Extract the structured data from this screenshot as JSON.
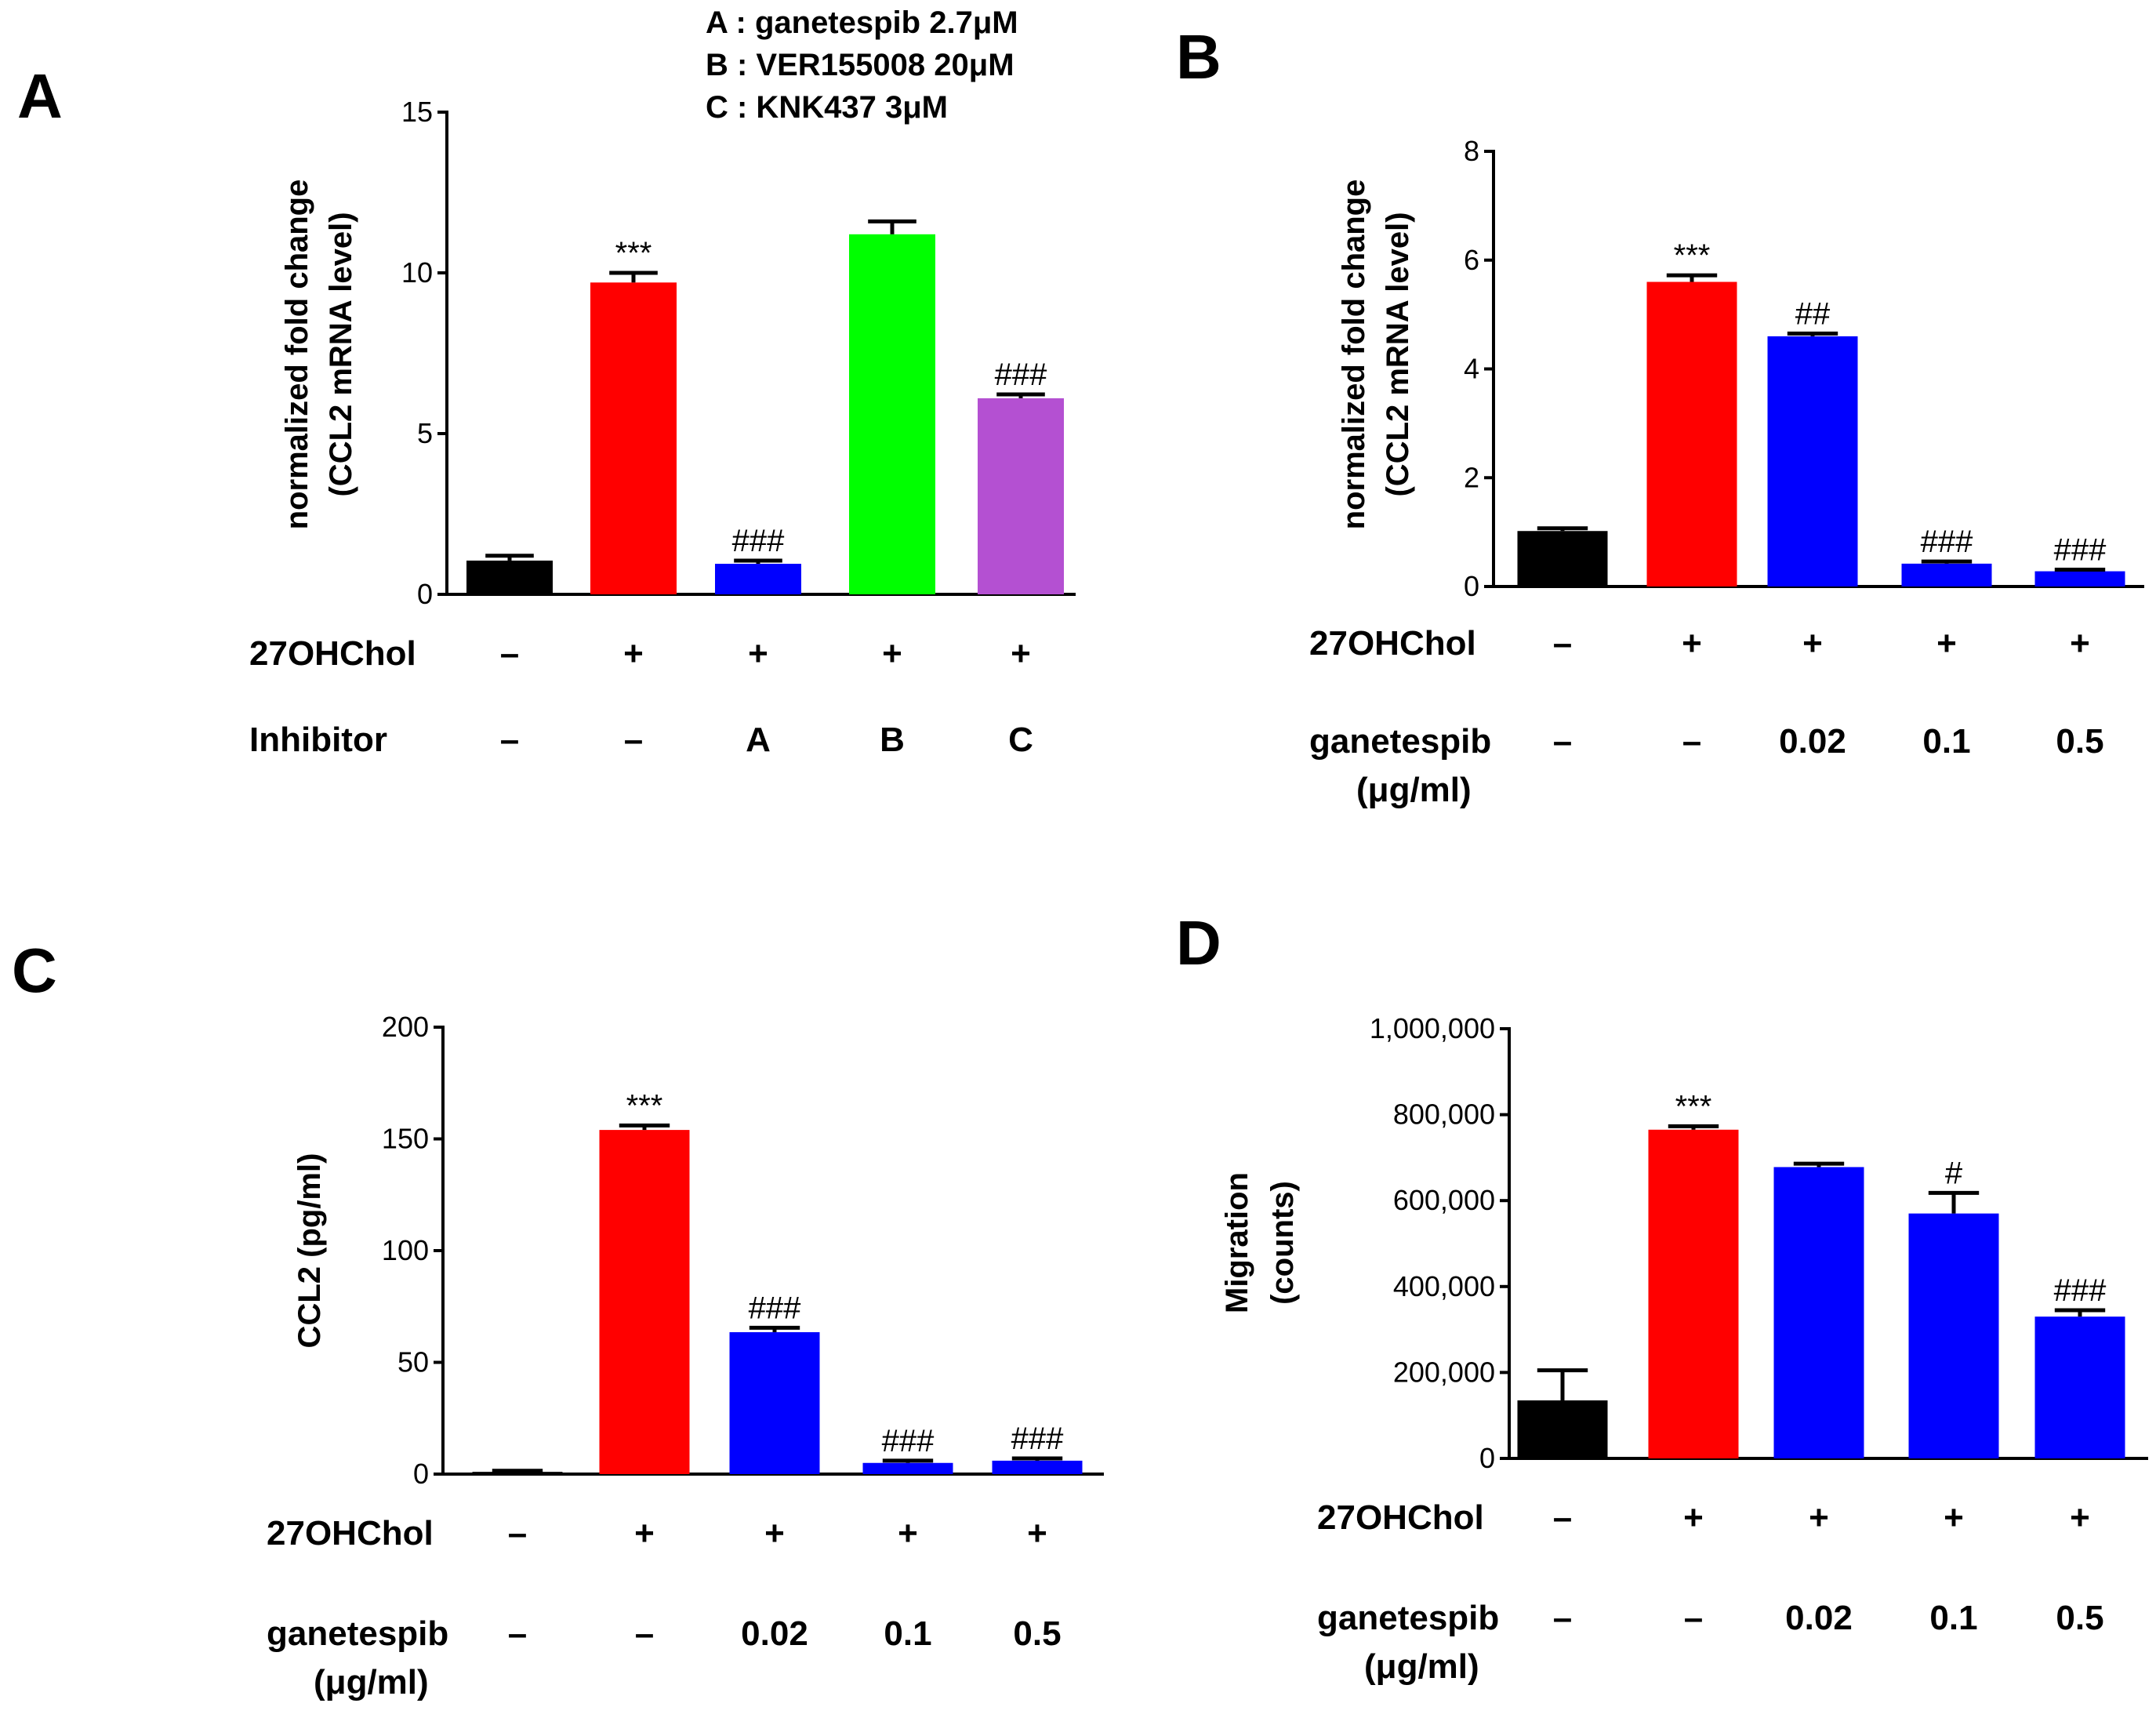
{
  "colors": {
    "black": "#000000",
    "red": "#ff0000",
    "blue": "#0000ff",
    "green": "#00ff00",
    "purple": "#b450d2"
  },
  "legend": [
    "A : ganetespib  2.7μM",
    "B : VER155008  20μM",
    "C : KNK437  3μM"
  ],
  "chart_data": [
    {
      "panel": "A",
      "type": "bar",
      "ylabel": [
        "normalized fold change",
        "(CCL2 mRNA level)"
      ],
      "ylim": [
        0,
        15
      ],
      "yticks": [
        "0",
        "5",
        "10",
        "15"
      ],
      "categories": [
        "1",
        "2",
        "3",
        "4",
        "5"
      ],
      "values": [
        1.05,
        9.7,
        0.95,
        11.2,
        6.1
      ],
      "errors": [
        0.15,
        0.3,
        0.1,
        0.4,
        0.12
      ],
      "bar_colors": [
        "black",
        "red",
        "blue",
        "green",
        "purple"
      ],
      "annotations": [
        "",
        "***",
        "###",
        "",
        "###"
      ],
      "rows": [
        {
          "label": "27OHChol",
          "cells": [
            "–",
            "+",
            "+",
            "+",
            "+"
          ]
        },
        {
          "label": "Inhibitor",
          "cells": [
            "–",
            "–",
            "A",
            "B",
            "C"
          ]
        }
      ]
    },
    {
      "panel": "B",
      "type": "bar",
      "ylabel": [
        "normalized fold change",
        "(CCL2 mRNA level)"
      ],
      "ylim": [
        0,
        8
      ],
      "yticks": [
        "0",
        "2",
        "4",
        "6",
        "8"
      ],
      "categories": [
        "1",
        "2",
        "3",
        "4",
        "5"
      ],
      "values": [
        1.02,
        5.6,
        4.6,
        0.42,
        0.28
      ],
      "errors": [
        0.05,
        0.12,
        0.05,
        0.04,
        0.03
      ],
      "bar_colors": [
        "black",
        "red",
        "blue",
        "blue",
        "blue"
      ],
      "annotations": [
        "",
        "***",
        "##",
        "###",
        "###"
      ],
      "rows": [
        {
          "label": "27OHChol",
          "cells": [
            "–",
            "+",
            "+",
            "+",
            "+"
          ]
        },
        {
          "label": "ganetespib",
          "label2": "(μg/ml)",
          "cells": [
            "–",
            "–",
            "0.02",
            "0.1",
            "0.5"
          ]
        }
      ]
    },
    {
      "panel": "C",
      "type": "bar",
      "ylabel": [
        "CCL2 (pg/ml)"
      ],
      "ylim": [
        0,
        200
      ],
      "yticks": [
        "0",
        "50",
        "100",
        "150",
        "200"
      ],
      "categories": [
        "1",
        "2",
        "3",
        "4",
        "5"
      ],
      "values": [
        1,
        154,
        63.5,
        5,
        6
      ],
      "errors": [
        0.5,
        2,
        2,
        1,
        1
      ],
      "bar_colors": [
        "black",
        "red",
        "blue",
        "blue",
        "blue"
      ],
      "annotations": [
        "",
        "***",
        "###",
        "###",
        "###"
      ],
      "rows": [
        {
          "label": "27OHChol",
          "cells": [
            "–",
            "+",
            "+",
            "+",
            "+"
          ]
        },
        {
          "label": "ganetespib",
          "label2": "(μg/ml)",
          "cells": [
            "–",
            "–",
            "0.02",
            "0.1",
            "0.5"
          ]
        }
      ]
    },
    {
      "panel": "D",
      "type": "bar",
      "ylabel": [
        "Migration",
        "(counts)"
      ],
      "ylim": [
        0,
        1000000
      ],
      "yticks": [
        "0",
        "200,000",
        "400,000",
        "600,000",
        "800,000",
        "1,000,000"
      ],
      "categories": [
        "1",
        "2",
        "3",
        "4",
        "5"
      ],
      "values": [
        135000,
        765000,
        678000,
        570000,
        330000
      ],
      "errors": [
        70000,
        8000,
        8000,
        48000,
        15000
      ],
      "bar_colors": [
        "black",
        "red",
        "blue",
        "blue",
        "blue"
      ],
      "annotations": [
        "",
        "***",
        "",
        "#",
        "###"
      ],
      "rows": [
        {
          "label": "27OHChol",
          "cells": [
            "–",
            "+",
            "+",
            "+",
            "+"
          ]
        },
        {
          "label": "ganetespib",
          "label2": "(μg/ml)",
          "cells": [
            "–",
            "–",
            "0.02",
            "0.1",
            "0.5"
          ]
        }
      ]
    }
  ]
}
